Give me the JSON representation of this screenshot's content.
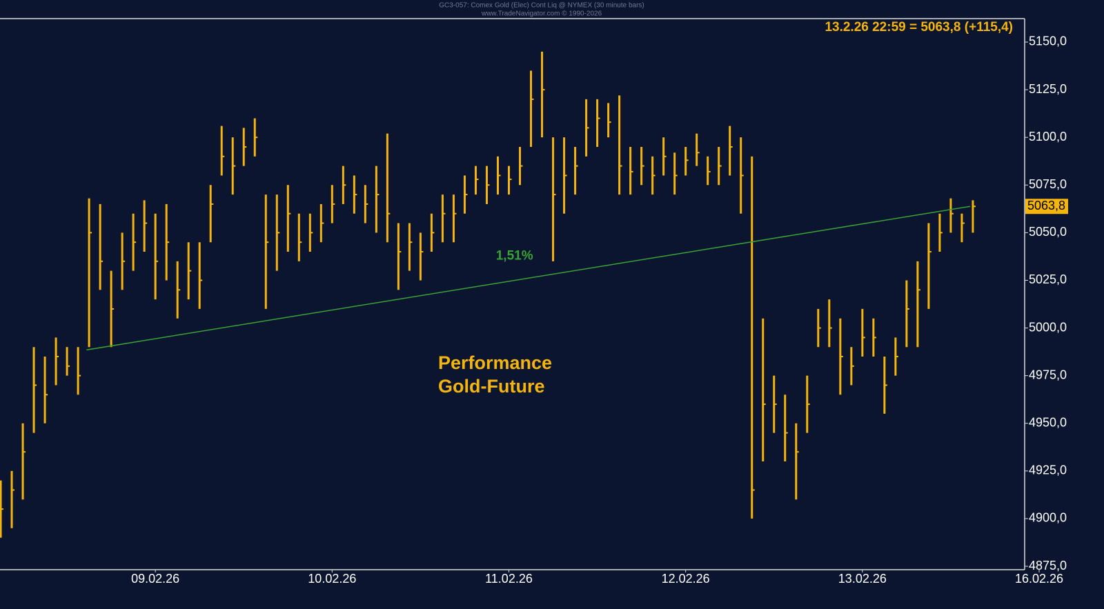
{
  "chart_data": {
    "type": "ohlc",
    "title": "GC3-057: Comex Gold (Elec) Cont Liq @ NYMEX (30 minute bars)",
    "subtitle": "www.TradeNavigator.com © 1990-2026",
    "quote": "13.2.26 22:59 = 5063,8 (+115,4)",
    "annotation": [
      "Performance",
      "Gold-Future"
    ],
    "color": "#f5b50f",
    "x": [
      -0.875,
      -0.8125,
      -0.75,
      -0.6875,
      -0.625,
      -0.5625,
      -0.5,
      -0.4375,
      -0.375,
      -0.3125,
      -0.25,
      -0.1875,
      -0.125,
      -0.0625,
      0,
      0.0625,
      0.125,
      0.1875,
      0.25,
      0.3125,
      0.375,
      0.4375,
      0.5,
      0.5625,
      0.625,
      0.6875,
      0.75,
      0.8125,
      0.875,
      0.9375,
      1,
      1.0625,
      1.125,
      1.1875,
      1.25,
      1.3125,
      1.375,
      1.4375,
      1.5,
      1.5625,
      1.625,
      1.6875,
      1.75,
      1.8125,
      1.875,
      1.9375,
      2,
      2.0625,
      2.125,
      2.1875,
      2.25,
      2.3125,
      2.375,
      2.4375,
      2.5,
      2.5625,
      2.625,
      2.6875,
      2.75,
      2.8125,
      2.875,
      2.9375,
      3,
      3.0625,
      3.125,
      3.1875,
      3.25,
      3.3125,
      3.375,
      3.4375,
      3.5,
      3.5625,
      3.625,
      3.6875,
      3.75,
      3.8125,
      3.875,
      3.9375,
      4,
      4.0625,
      4.125,
      4.1875,
      4.25,
      4.3125,
      4.375,
      4.4375,
      4.5,
      4.5625,
      4.625
    ],
    "high": [
      4920,
      4925,
      4950,
      4990,
      4985,
      4995,
      4990,
      4990,
      5068,
      5065,
      5030,
      5050,
      5060,
      5067,
      5060,
      5065,
      5035,
      5045,
      5045,
      5075,
      5106,
      5100,
      5105,
      5110,
      5070,
      5070,
      5075,
      5060,
      5060,
      5065,
      5075,
      5085,
      5080,
      5075,
      5085,
      5102,
      5055,
      5055,
      5050,
      5060,
      5070,
      5070,
      5080,
      5085,
      5085,
      5090,
      5085,
      5095,
      5135,
      5145,
      5100,
      5100,
      5095,
      5120,
      5120,
      5118,
      5122,
      5095,
      5095,
      5090,
      5100,
      5092,
      5095,
      5102,
      5090,
      5095,
      5106,
      5100,
      5090,
      5005,
      4975,
      4965,
      4950,
      4975,
      5010,
      5015,
      5005,
      4990,
      5010,
      5005,
      4985,
      4995,
      5025,
      5035,
      5055,
      5060,
      5068,
      5060,
      5067
    ],
    "low": [
      4890,
      4895,
      4910,
      4945,
      4950,
      4970,
      4975,
      4965,
      4990,
      5020,
      4990,
      5020,
      5030,
      5040,
      5015,
      5025,
      5005,
      5015,
      5010,
      5045,
      5080,
      5070,
      5085,
      5090,
      5010,
      5030,
      5040,
      5035,
      5040,
      5045,
      5055,
      5065,
      5060,
      5055,
      5050,
      5045,
      5020,
      5030,
      5025,
      5040,
      5045,
      5045,
      5060,
      5070,
      5065,
      5070,
      5070,
      5075,
      5095,
      5100,
      5035,
      5060,
      5070,
      5090,
      5095,
      5100,
      5070,
      5070,
      5075,
      5070,
      5080,
      5070,
      5080,
      5085,
      5075,
      5075,
      5080,
      5060,
      4900,
      4930,
      4945,
      4930,
      4910,
      4945,
      4990,
      4990,
      4965,
      4970,
      4985,
      4985,
      4955,
      4975,
      4990,
      4990,
      5010,
      5040,
      5050,
      5045,
      5050
    ],
    "close": [
      4905,
      4915,
      4935,
      4970,
      4965,
      4985,
      4980,
      4975,
      5050,
      5035,
      5010,
      5035,
      5045,
      5055,
      5035,
      5045,
      5020,
      5030,
      5025,
      5065,
      5090,
      5085,
      5095,
      5100,
      5045,
      5050,
      5060,
      5045,
      5050,
      5055,
      5065,
      5075,
      5070,
      5065,
      5070,
      5060,
      5040,
      5045,
      5040,
      5050,
      5060,
      5060,
      5070,
      5078,
      5075,
      5080,
      5078,
      5085,
      5120,
      5125,
      5070,
      5080,
      5085,
      5105,
      5110,
      5108,
      5085,
      5082,
      5085,
      5080,
      5090,
      5080,
      5088,
      5092,
      5082,
      5085,
      5095,
      5080,
      4915,
      4960,
      4960,
      4945,
      4935,
      4960,
      5000,
      5000,
      4985,
      4980,
      4995,
      4995,
      4970,
      4985,
      5010,
      5020,
      5040,
      5050,
      5060,
      5055,
      5063.8
    ],
    "trendline": {
      "x": [
        -0.39,
        4.61
      ],
      "y": [
        4988.5,
        5063.8
      ],
      "color": "#3aa335",
      "label": "1,51%"
    },
    "last_price": {
      "value": 5063.8,
      "label": "5063,8"
    },
    "xlim": [
      -0.879,
      4.918
    ],
    "xticks": [
      {
        "value": 0,
        "label": "09.02.26"
      },
      {
        "value": 1,
        "label": "10.02.26"
      },
      {
        "value": 2,
        "label": "11.02.26"
      },
      {
        "value": 3,
        "label": "12.02.26"
      },
      {
        "value": 4,
        "label": "13.02.26"
      },
      {
        "value": 5,
        "label": "16.02.26"
      }
    ],
    "ylim": [
      4873.2,
      5162.3
    ],
    "yticks": [
      {
        "value": 4875,
        "label": "4875,0"
      },
      {
        "value": 4900,
        "label": "4900,0"
      },
      {
        "value": 4925,
        "label": "4925,0"
      },
      {
        "value": 4950,
        "label": "4950,0"
      },
      {
        "value": 4975,
        "label": "4975,0"
      },
      {
        "value": 5000,
        "label": "5000,0"
      },
      {
        "value": 5025,
        "label": "5025,0"
      },
      {
        "value": 5050,
        "label": "5050,0"
      },
      {
        "value": 5075,
        "label": "5075,0"
      },
      {
        "value": 5100,
        "label": "5100,0"
      },
      {
        "value": 5125,
        "label": "5125,0"
      },
      {
        "value": 5150,
        "label": "5150,0"
      }
    ]
  }
}
